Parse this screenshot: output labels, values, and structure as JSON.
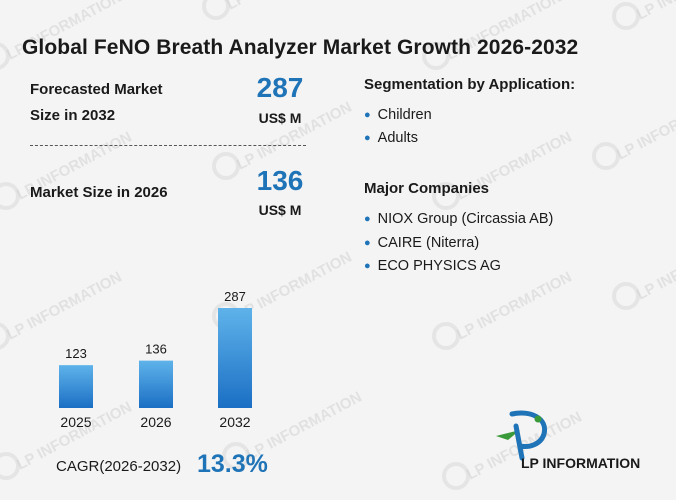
{
  "header": {
    "title": "Global FeNO Breath Analyzer Market Growth 2026-2032"
  },
  "forecast": {
    "label_line1": "Forecasted Market",
    "label_line2": "Size in 2032",
    "value": "287",
    "unit": "US$ M"
  },
  "current": {
    "label": "Market Size in 2026",
    "value": "136",
    "unit": "US$ M"
  },
  "segmentation": {
    "heading": "Segmentation by Application:",
    "items": [
      "Children",
      "Adults"
    ]
  },
  "companies": {
    "heading": "Major Companies",
    "items": [
      "NIOX Group (Circassia AB)",
      "CAIRE (Niterra)",
      "ECO PHYSICS AG"
    ]
  },
  "cagr": {
    "label": "CAGR(2026-2032)",
    "value": "13.3%"
  },
  "logo": {
    "text": "LP INFORMATION"
  },
  "watermark": {
    "text": "LP INFORMATION"
  },
  "colors": {
    "accent": "#1f73b7",
    "bar_top": "#5fb3ea",
    "bar_bottom": "#1b6fc4",
    "logo_green": "#3a9a3a"
  },
  "chart_data": {
    "type": "bar",
    "categories": [
      "2025",
      "2026",
      "2032"
    ],
    "values": [
      123,
      136,
      287
    ],
    "title": "",
    "xlabel": "",
    "ylabel": "",
    "ylim": [
      0,
      287
    ],
    "grid": false,
    "legend": "none"
  }
}
